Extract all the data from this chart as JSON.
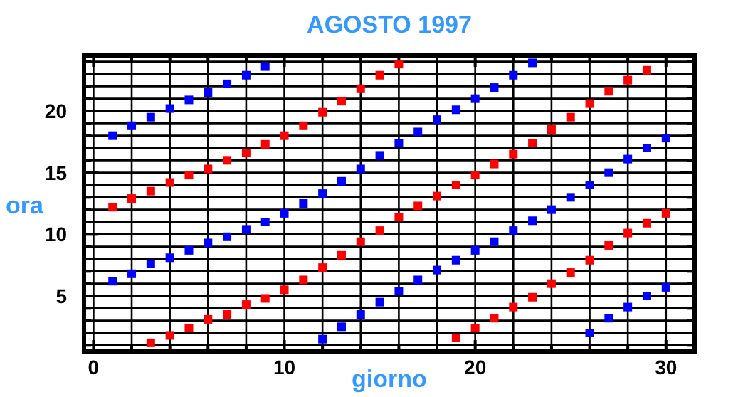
{
  "chart_data": {
    "type": "scatter",
    "title": "AGOSTO 1997",
    "xlabel": "giorno",
    "ylabel": "ora",
    "xlim": [
      -0.5,
      31.5
    ],
    "ylim": [
      0.5,
      24.5
    ],
    "xticks": [
      0,
      {
        "value": 2,
        "label": null
      },
      {
        "value": 4,
        "label": null
      },
      {
        "value": 6,
        "label": null
      },
      {
        "value": 8,
        "label": null
      },
      10,
      {
        "value": 12,
        "label": null
      },
      {
        "value": 14,
        "label": null
      },
      {
        "value": 16,
        "label": null
      },
      {
        "value": 18,
        "label": null
      },
      20,
      {
        "value": 22,
        "label": null
      },
      {
        "value": 24,
        "label": null
      },
      {
        "value": 26,
        "label": null
      },
      {
        "value": 28,
        "label": null
      },
      30
    ],
    "yticks": [
      {
        "value": 1,
        "label": null
      },
      {
        "value": 2,
        "label": null
      },
      {
        "value": 3,
        "label": null
      },
      {
        "value": 4,
        "label": null
      },
      5,
      {
        "value": 6,
        "label": null
      },
      {
        "value": 7,
        "label": null
      },
      {
        "value": 8,
        "label": null
      },
      {
        "value": 9,
        "label": null
      },
      10,
      {
        "value": 11,
        "label": null
      },
      {
        "value": 12,
        "label": null
      },
      {
        "value": 13,
        "label": null
      },
      {
        "value": 14,
        "label": null
      },
      15,
      {
        "value": 16,
        "label": null
      },
      {
        "value": 17,
        "label": null
      },
      {
        "value": 18,
        "label": null
      },
      {
        "value": 19,
        "label": null
      },
      20,
      {
        "value": 21,
        "label": null
      },
      {
        "value": 22,
        "label": null
      },
      {
        "value": 23,
        "label": null
      },
      {
        "value": 24,
        "label": null
      }
    ],
    "grid": true,
    "marker": "square",
    "series": [
      {
        "color": "#0000ff",
        "x": [
          1,
          2,
          3,
          4,
          5,
          6,
          7,
          8,
          9,
          1,
          2,
          3,
          4,
          5,
          6,
          7,
          8,
          9,
          10,
          11,
          12,
          13,
          14,
          15,
          16,
          17,
          18,
          19,
          20,
          21,
          22,
          23,
          12,
          13,
          14,
          15,
          16,
          17,
          18,
          19,
          20,
          21,
          22,
          23,
          24,
          25,
          26,
          27,
          28,
          29,
          30,
          26,
          27,
          28,
          29,
          30
        ],
        "values": [
          18.0,
          18.8,
          19.5,
          20.2,
          20.9,
          21.5,
          22.2,
          22.9,
          23.6,
          6.2,
          6.8,
          7.6,
          8.1,
          8.7,
          9.3,
          9.8,
          10.4,
          11.0,
          11.7,
          12.5,
          13.3,
          14.3,
          15.3,
          16.4,
          17.4,
          18.3,
          19.3,
          20.1,
          21.0,
          21.9,
          22.9,
          23.9,
          1.5,
          2.5,
          3.5,
          4.5,
          5.4,
          6.3,
          7.1,
          7.9,
          8.7,
          9.4,
          10.3,
          11.1,
          12.0,
          13.0,
          14.0,
          15.0,
          16.1,
          17.0,
          17.8,
          2.0,
          3.2,
          4.1,
          5.0,
          5.7
        ]
      },
      {
        "color": "#ff0000",
        "x": [
          1,
          2,
          3,
          4,
          5,
          6,
          7,
          8,
          9,
          10,
          11,
          12,
          13,
          14,
          15,
          16,
          3,
          4,
          5,
          6,
          7,
          8,
          9,
          10,
          11,
          12,
          13,
          14,
          15,
          16,
          17,
          18,
          19,
          20,
          21,
          22,
          23,
          24,
          25,
          26,
          27,
          28,
          29,
          19,
          20,
          21,
          22,
          23,
          24,
          25,
          26,
          27,
          28,
          29,
          30
        ],
        "values": [
          12.2,
          12.9,
          13.5,
          14.2,
          14.8,
          15.3,
          16.0,
          16.6,
          17.3,
          18.0,
          18.8,
          19.9,
          20.8,
          21.8,
          22.9,
          23.8,
          1.2,
          1.8,
          2.4,
          3.1,
          3.5,
          4.3,
          4.8,
          5.5,
          6.3,
          7.3,
          8.3,
          9.4,
          10.3,
          11.4,
          12.3,
          13.1,
          14.0,
          14.8,
          15.7,
          16.5,
          17.4,
          18.5,
          19.5,
          20.6,
          21.6,
          22.5,
          23.3,
          1.6,
          2.4,
          3.2,
          4.1,
          4.9,
          6.0,
          6.9,
          7.9,
          9.1,
          10.1,
          10.9,
          11.7
        ]
      }
    ]
  }
}
